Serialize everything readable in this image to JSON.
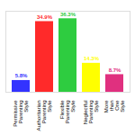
{
  "chart_data": {
    "type": "bar",
    "categories": [
      "Permissive Parenting Style",
      "Authoritarian Parenting Style",
      "Flexible Parenting Style",
      "Neglectful Parenting Style",
      "More than One Style"
    ],
    "values": [
      5.8,
      34.9,
      36.3,
      14.3,
      8.7
    ],
    "value_labels": [
      "5.8%",
      "34.9%",
      "36.3%",
      "14.3%",
      "8.7%"
    ],
    "colors": [
      "#3333ff",
      "#ff2a2a",
      "#2ecc40",
      "#ffff00",
      "#e0307f"
    ],
    "ylim": [
      0,
      40
    ],
    "data_labels": true,
    "tick_labels": "x",
    "grid": false
  }
}
